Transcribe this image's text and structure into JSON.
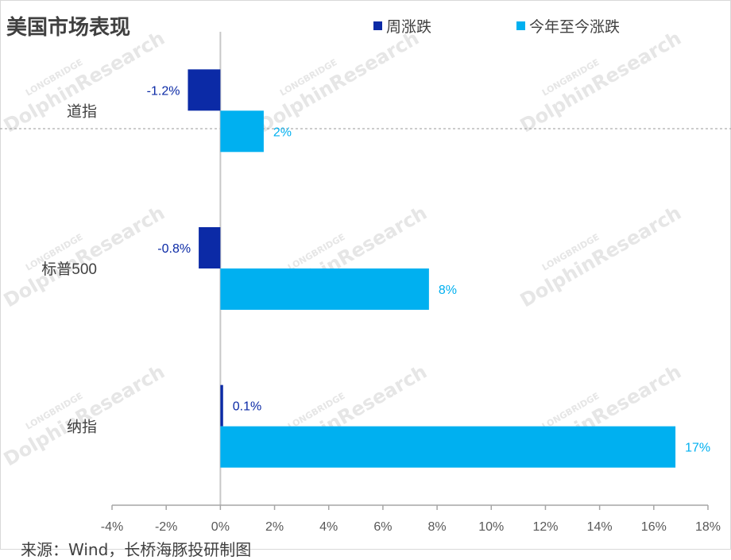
{
  "title": "美国市场表现",
  "source": "来源：Wind，长桥海豚投研制图",
  "watermark": {
    "brand": "DolphinResearch",
    "sub": "LONGBRIDGE"
  },
  "colors": {
    "weekly": "#0b2aa6",
    "ytd": "#00b0f0",
    "axis": "#a6a6a6",
    "text": "#404040"
  },
  "chart_data": {
    "type": "bar",
    "orientation": "horizontal",
    "categories": [
      "道指",
      "标普500",
      "纳指"
    ],
    "series": [
      {
        "name": "周涨跌",
        "values": [
          -1.2,
          -0.8,
          0.1
        ],
        "labels": [
          "-1.2%",
          "-0.8%",
          "0.1%"
        ],
        "color": "#0b2aa6"
      },
      {
        "name": "今年至今涨跌",
        "values": [
          1.6,
          7.7,
          16.8
        ],
        "labels": [
          "2%",
          "8%",
          "17%"
        ],
        "color": "#00b0f0"
      }
    ],
    "xlim": [
      -4,
      18
    ],
    "xticks": [
      -4,
      -2,
      0,
      2,
      4,
      6,
      8,
      10,
      12,
      14,
      16,
      18
    ],
    "xtick_labels": [
      "-4%",
      "-2%",
      "0%",
      "2%",
      "4%",
      "6%",
      "8%",
      "10%",
      "12%",
      "14%",
      "16%",
      "18%"
    ],
    "legend_position": "top",
    "grid": false
  }
}
